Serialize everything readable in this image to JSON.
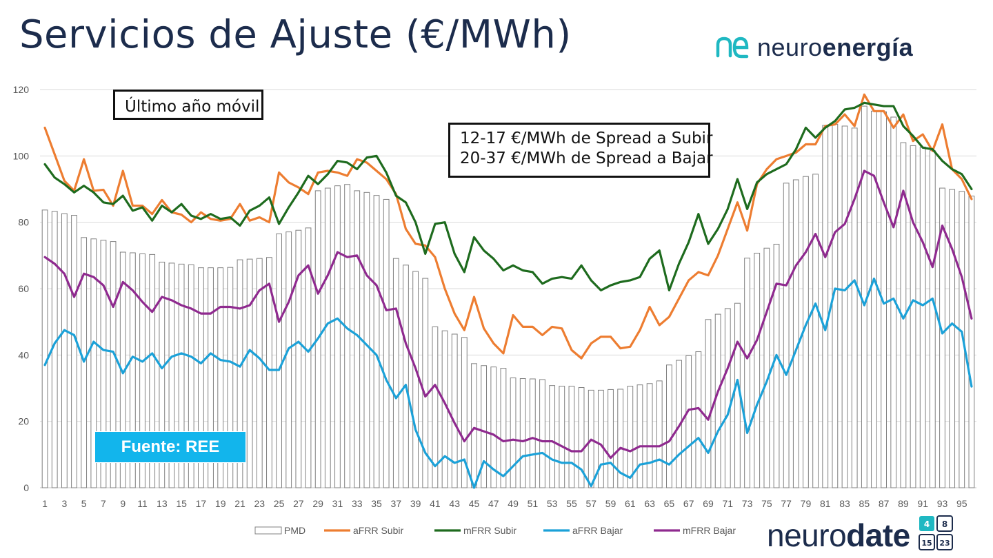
{
  "header": {
    "title": "Servicios de Ajuste (€/MWh)"
  },
  "logo_top": {
    "prefix": "neuro",
    "suffix": "energía"
  },
  "annotations": {
    "period": "Último año móvil",
    "spread_up": "12-17 €/MWh de Spread a Subir",
    "spread_down": "20-37 €/MWh de Spread a Bajar"
  },
  "source": "Fuente: REE",
  "logo_bottom": {
    "prefix": "neuro",
    "suffix": "date",
    "calendar": [
      "4",
      "8",
      "15",
      "23"
    ]
  },
  "colors": {
    "title": "#1c2c4c",
    "pmd": "#808080",
    "afrr_up": "#ed7d31",
    "mfrr_up": "#1e6b1e",
    "afrr_down": "#1ba1d8",
    "mfrr_down": "#8f2a8f",
    "source_bg": "#12b5ec",
    "logo_accent": "#1fb8c2"
  },
  "chart_data": {
    "type": "bar+line",
    "title": "Servicios de Ajuste (€/MWh)",
    "xlabel": "",
    "ylabel": "",
    "ylim": [
      0,
      120
    ],
    "yticks": [
      0,
      20,
      40,
      60,
      80,
      100,
      120
    ],
    "x": [
      1,
      2,
      3,
      4,
      5,
      6,
      7,
      8,
      9,
      10,
      11,
      12,
      13,
      14,
      15,
      16,
      17,
      18,
      19,
      20,
      21,
      22,
      23,
      24,
      25,
      26,
      27,
      28,
      29,
      30,
      31,
      32,
      33,
      34,
      35,
      36,
      37,
      38,
      39,
      40,
      41,
      42,
      43,
      44,
      45,
      46,
      47,
      48,
      49,
      50,
      51,
      52,
      53,
      54,
      55,
      56,
      57,
      58,
      59,
      60,
      61,
      62,
      63,
      64,
      65,
      66,
      67,
      68,
      69,
      70,
      71,
      72,
      73,
      74,
      75,
      76,
      77,
      78,
      79,
      80,
      81,
      82,
      83,
      84,
      85,
      86,
      87,
      88,
      89,
      90,
      91,
      92,
      93,
      94,
      95,
      96
    ],
    "xtick_labels": [
      "1",
      "3",
      "5",
      "7",
      "9",
      "11",
      "13",
      "15",
      "17",
      "19",
      "21",
      "23",
      "25",
      "27",
      "29",
      "31",
      "33",
      "35",
      "37",
      "39",
      "41",
      "43",
      "45",
      "47",
      "49",
      "51",
      "53",
      "55",
      "57",
      "59",
      "61",
      "63",
      "65",
      "67",
      "69",
      "71",
      "73",
      "75",
      "77",
      "79",
      "81",
      "83",
      "85",
      "87",
      "89",
      "91",
      "93",
      "95"
    ],
    "grid": true,
    "legend_position": "bottom",
    "series": [
      {
        "name": "PMD",
        "kind": "bar",
        "color": "#808080",
        "values": [
          83.7,
          83.3,
          82.6,
          82.1,
          75.4,
          75.0,
          74.6,
          74.2,
          71.0,
          70.8,
          70.5,
          70.3,
          68.0,
          67.7,
          67.4,
          67.2,
          66.3,
          66.3,
          66.3,
          66.4,
          68.7,
          68.9,
          69.1,
          69.4,
          76.5,
          77.1,
          77.6,
          78.3,
          89.5,
          90.3,
          91.0,
          91.4,
          89.5,
          89.0,
          88.1,
          86.9,
          69.1,
          67.1,
          65.2,
          63.1,
          48.5,
          47.3,
          46.3,
          45.3,
          37.4,
          36.8,
          36.4,
          36.0,
          33.1,
          32.9,
          32.8,
          32.6,
          30.8,
          30.6,
          30.6,
          30.2,
          29.4,
          29.4,
          29.6,
          29.7,
          30.6,
          31.0,
          31.4,
          32.2,
          37.0,
          38.4,
          39.8,
          41.0,
          50.7,
          52.3,
          54.0,
          55.6,
          69.2,
          70.7,
          72.2,
          73.4,
          91.8,
          92.8,
          93.8,
          94.5,
          109.2,
          109.5,
          109.0,
          108.4,
          115.0,
          113.5,
          113.3,
          111.7,
          104.0,
          103.1,
          102.7,
          101.6,
          90.3,
          89.9,
          89.3,
          87.9
        ]
      },
      {
        "name": "aFRR Subir",
        "kind": "line",
        "color": "#ed7d31",
        "values": [
          108.5,
          100.5,
          92.5,
          89.5,
          99.0,
          89.5,
          89.8,
          85.0,
          95.5,
          85.0,
          85.0,
          82.5,
          86.7,
          83.0,
          82.3,
          80.0,
          83.0,
          81.0,
          80.5,
          81.0,
          85.5,
          80.5,
          81.5,
          80.0,
          95.0,
          92.0,
          90.5,
          88.5,
          95.0,
          95.5,
          95.0,
          94.0,
          99.0,
          98.0,
          95.5,
          93.0,
          88.5,
          78.0,
          73.5,
          73.0,
          69.5,
          60.0,
          52.5,
          47.5,
          57.5,
          48.0,
          43.5,
          40.5,
          52.0,
          48.5,
          48.5,
          46.0,
          48.5,
          48.0,
          41.5,
          39.0,
          43.5,
          45.5,
          45.5,
          42.0,
          42.5,
          47.5,
          54.5,
          49.0,
          51.5,
          57.0,
          62.5,
          65.0,
          64.0,
          70.0,
          78.0,
          86.0,
          77.5,
          91.5,
          96.0,
          99.0,
          100.0,
          101.0,
          103.5,
          103.5,
          109.0,
          109.5,
          112.5,
          109.0,
          118.5,
          113.5,
          113.5,
          108.5,
          112.5,
          104.5,
          106.5,
          101.5,
          109.5,
          96.0,
          93.0,
          87.0
        ]
      },
      {
        "name": "mFRR Subir",
        "kind": "line",
        "color": "#1e6b1e",
        "values": [
          97.5,
          93.5,
          91.5,
          89.0,
          91.0,
          89.0,
          86.0,
          85.5,
          88.0,
          83.5,
          84.5,
          80.5,
          85.0,
          83.0,
          85.5,
          82.0,
          81.0,
          82.5,
          81.0,
          81.5,
          79.0,
          83.5,
          85.0,
          87.5,
          79.5,
          84.5,
          89.0,
          94.0,
          91.5,
          94.5,
          98.5,
          98.0,
          96.0,
          99.5,
          100.0,
          95.0,
          88.0,
          86.0,
          80.0,
          70.5,
          79.5,
          80.0,
          70.5,
          65.0,
          75.5,
          71.5,
          69.0,
          65.5,
          67.0,
          65.5,
          65.0,
          61.5,
          63.0,
          63.5,
          63.0,
          67.0,
          62.5,
          59.5,
          61.0,
          62.0,
          62.5,
          63.5,
          69.0,
          71.5,
          59.5,
          67.5,
          74.0,
          82.5,
          73.5,
          78.0,
          84.0,
          93.0,
          84.0,
          92.0,
          94.5,
          96.0,
          97.5,
          102.0,
          108.5,
          105.5,
          108.5,
          110.5,
          114.0,
          114.5,
          116.0,
          115.5,
          115.0,
          115.0,
          109.0,
          106.0,
          102.5,
          102.0,
          98.5,
          96.0,
          94.5,
          90.0
        ]
      },
      {
        "name": "aFRR Bajar",
        "kind": "line",
        "color": "#1ba1d8",
        "values": [
          37.0,
          43.5,
          47.5,
          46.0,
          38.0,
          44.0,
          41.5,
          41.0,
          34.5,
          39.5,
          38.0,
          40.5,
          36.0,
          39.5,
          40.5,
          39.5,
          37.5,
          40.5,
          38.5,
          38.0,
          36.5,
          41.5,
          39.0,
          35.5,
          35.5,
          42.0,
          44.0,
          41.0,
          45.0,
          49.5,
          51.0,
          48.0,
          46.0,
          43.0,
          40.0,
          32.5,
          27.0,
          31.0,
          17.5,
          10.5,
          6.5,
          9.5,
          7.5,
          8.5,
          0.0,
          8.0,
          5.5,
          3.5,
          6.5,
          9.5,
          10.0,
          10.5,
          8.5,
          7.5,
          7.5,
          5.5,
          0.5,
          7.0,
          7.5,
          4.5,
          3.0,
          7.0,
          7.5,
          8.5,
          7.0,
          10.0,
          12.5,
          15.0,
          10.5,
          17.0,
          22.0,
          32.5,
          16.5,
          25.0,
          32.0,
          40.0,
          34.0,
          41.5,
          49.0,
          55.5,
          47.5,
          60.0,
          59.5,
          62.5,
          55.0,
          63.0,
          55.5,
          57.0,
          51.0,
          56.5,
          55.0,
          57.0,
          46.5,
          49.5,
          47.0,
          30.5
        ]
      },
      {
        "name": "mFRR Bajar",
        "kind": "line",
        "color": "#8f2a8f",
        "values": [
          69.5,
          67.5,
          64.5,
          57.5,
          64.5,
          63.5,
          61.0,
          54.5,
          62.0,
          59.5,
          56.0,
          53.0,
          57.5,
          56.5,
          55.0,
          54.0,
          52.5,
          52.5,
          54.5,
          54.5,
          54.0,
          55.0,
          59.5,
          61.5,
          50.0,
          56.0,
          64.0,
          67.0,
          58.5,
          64.0,
          71.0,
          69.5,
          70.0,
          64.0,
          61.0,
          53.5,
          54.0,
          43.5,
          36.0,
          27.5,
          31.0,
          25.5,
          19.5,
          14.0,
          18.0,
          17.0,
          16.0,
          14.0,
          14.5,
          14.0,
          15.0,
          14.0,
          14.0,
          12.5,
          11.0,
          11.0,
          14.5,
          13.0,
          9.0,
          12.0,
          11.0,
          12.5,
          12.5,
          12.5,
          14.0,
          18.5,
          23.5,
          24.0,
          20.5,
          29.0,
          36.0,
          44.0,
          39.0,
          44.5,
          53.0,
          61.5,
          61.0,
          67.0,
          71.0,
          76.5,
          69.5,
          77.0,
          79.5,
          87.0,
          95.5,
          94.0,
          86.0,
          78.5,
          89.5,
          80.0,
          74.0,
          66.5,
          79.0,
          72.0,
          63.5,
          51.0
        ]
      }
    ]
  }
}
